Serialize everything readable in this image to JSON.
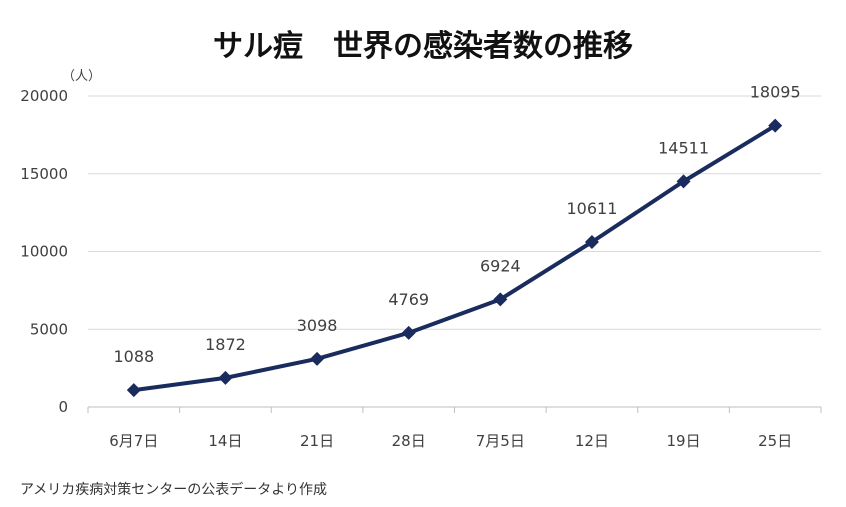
{
  "chart_data": {
    "type": "line",
    "title": "サル痘　世界の感染者数の推移",
    "y_unit": "（人）",
    "categories": [
      "6月7日",
      "14日",
      "21日",
      "28日",
      "7月5日",
      "12日",
      "19日",
      "25日"
    ],
    "series": [
      {
        "values": [
          1088,
          1872,
          3098,
          4769,
          6924,
          10611,
          14511,
          18095
        ],
        "color": "#1a2b5e",
        "marker": "diamond"
      }
    ],
    "data_labels": [
      "1088",
      "1872",
      "3098",
      "4769",
      "6924",
      "10611",
      "14511",
      "18095"
    ],
    "ylim": [
      0,
      20000
    ],
    "yticks": [
      0,
      5000,
      10000,
      15000,
      20000
    ],
    "ytick_labels": [
      "0",
      "5000",
      "10000",
      "15000",
      "20000"
    ],
    "grid": true,
    "legend": "none"
  },
  "source_note": "アメリカ疾病対策センターの公表データより作成"
}
